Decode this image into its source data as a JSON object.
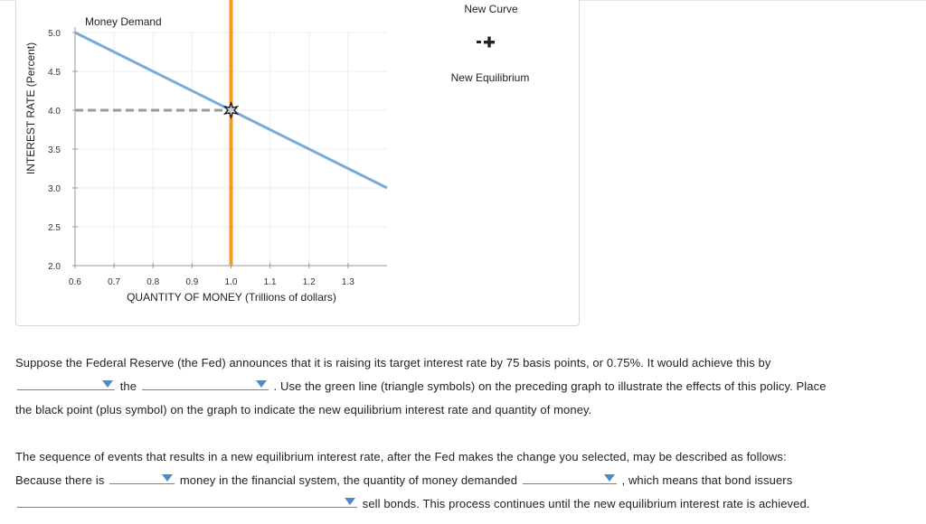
{
  "chart_data": {
    "type": "line",
    "ylabel": "INTEREST RATE (Percent)",
    "xlabel": "QUANTITY OF MONEY (Trillions of dollars)",
    "xlim": [
      0.6,
      1.4
    ],
    "ylim": [
      2.0,
      5.0
    ],
    "x_ticks": [
      "0.6",
      "0.7",
      "0.8",
      "0.9",
      "1.0",
      "1.1",
      "1.2",
      "1.3"
    ],
    "y_ticks": [
      "5.0",
      "4.5",
      "4.0",
      "3.5",
      "3.0",
      "2.5",
      "2.0"
    ],
    "grid": true,
    "series": [
      {
        "name": "Money Demand",
        "color": "#7aaad6",
        "x": [
          0.6,
          1.4
        ],
        "y": [
          5.0,
          3.0
        ]
      },
      {
        "name": "Money Supply",
        "color": "#f59a23",
        "x": [
          1.0,
          1.0
        ],
        "y": [
          2.0,
          5.4
        ]
      }
    ],
    "equilibrium": {
      "x": 1.0,
      "y": 4.0,
      "marker": "star",
      "guide_color": "#9b9b9b"
    },
    "labels": {
      "money_demand": "Money Demand"
    },
    "legend": {
      "placement": "right",
      "items": [
        {
          "label": "New Curve",
          "icon": "triangle-line-icon",
          "color": "#3cb44b"
        },
        {
          "label": "New Equilibrium",
          "icon": "plus-icon",
          "color": "#222222"
        }
      ]
    }
  },
  "question1": {
    "s1": "Suppose the Federal Reserve (the Fed) announces that it is raising its target interest rate by 75 basis points, or 0.75%. It would achieve this by",
    "s2": "the",
    "s3": ". Use the green line (triangle symbols) on the preceding graph to illustrate the effects of this policy. Place",
    "s4": "the black point (plus symbol) on the graph to indicate the new equilibrium interest rate and quantity of money."
  },
  "question2": {
    "s1": "The sequence of events that results in a new equilibrium interest rate, after the Fed makes the change you selected, may be described as follows:",
    "s2": "Because there is",
    "s3": "money in the financial system, the quantity of money demanded",
    "s4": ", which means that bond issuers",
    "s5": "sell bonds. This process continues until the new equilibrium interest rate is achieved."
  },
  "dropdowns": {
    "d1": "",
    "d2": "",
    "d3": "",
    "d4": "",
    "d5": ""
  }
}
